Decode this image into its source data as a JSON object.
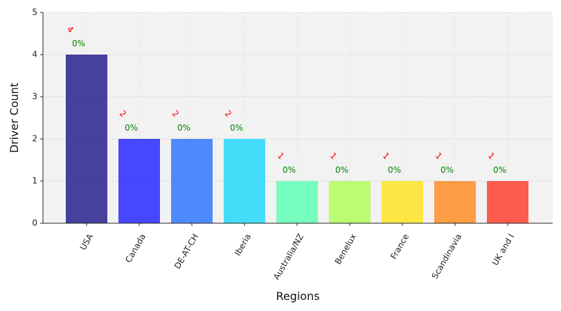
{
  "chart_data": {
    "type": "bar",
    "title": "",
    "xlabel": "Regions",
    "ylabel": "Driver Count",
    "categories": [
      "USA",
      "Canada",
      "DE-AT-CH",
      "Iberia",
      "Australia/NZ",
      "Benelux",
      "France",
      "Scandinavia",
      "UK and I"
    ],
    "values": [
      4,
      2,
      2,
      2,
      1,
      1,
      1,
      1,
      1
    ],
    "count_labels": [
      "4",
      "2",
      "2",
      "2",
      "1",
      "1",
      "1",
      "1",
      "1"
    ],
    "percent_labels": [
      "0%",
      "0%",
      "0%",
      "0%",
      "0%",
      "0%",
      "0%",
      "0%",
      "0%"
    ],
    "ylim": [
      0,
      5
    ],
    "yticks": [
      "0",
      "1",
      "2",
      "3",
      "4",
      "5"
    ],
    "grid": true,
    "colors": {
      "bars": [
        "#1f1a8a",
        "#2121ff",
        "#2b73ff",
        "#1fd7fb",
        "#5cffb1",
        "#adff53",
        "#ffe41e",
        "#ff8a20",
        "#ff3b28"
      ],
      "count_label": "#ff0000",
      "percent_label": "#008000",
      "plot_background": "#f2f2f2",
      "grid": "#c9c9c9"
    }
  }
}
